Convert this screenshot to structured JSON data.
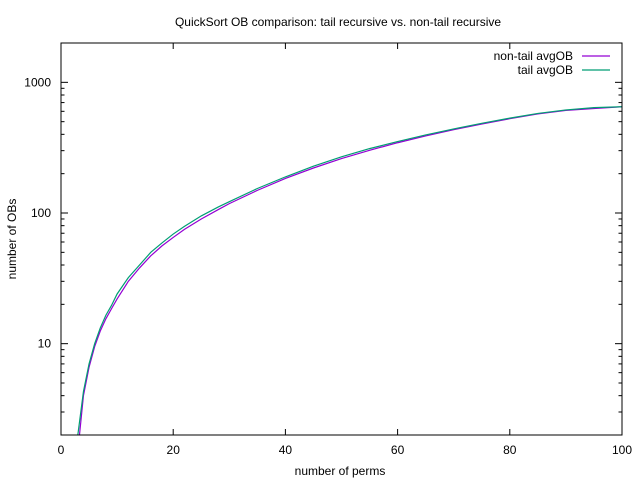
{
  "chart_data": {
    "type": "line",
    "title": "QuickSort OB comparison: tail recursive vs. non-tail recursive",
    "xlabel": "number of perms",
    "ylabel": "number of OBs",
    "xlim": [
      0,
      100
    ],
    "ylim": [
      2,
      2000
    ],
    "yscale": "log",
    "grid": false,
    "legend_position": "top-right",
    "xticks": [
      "0",
      "20",
      "40",
      "60",
      "80",
      "100"
    ],
    "yticks": [
      "10",
      "100",
      "1000"
    ],
    "x": [
      3,
      4,
      5,
      6,
      7,
      8,
      9,
      10,
      12,
      14,
      16,
      18,
      20,
      22,
      25,
      28,
      30,
      35,
      40,
      45,
      50,
      55,
      60,
      65,
      70,
      75,
      80,
      85,
      90,
      95,
      100
    ],
    "series": [
      {
        "name": "non-tail avgOB",
        "color": "#9400d3",
        "values": [
          1.5,
          4,
          6.6,
          9.5,
          12.5,
          15.5,
          18.5,
          22,
          30,
          38,
          47,
          56,
          65,
          75,
          90,
          106,
          118,
          149,
          184,
          221,
          261,
          302,
          345,
          389,
          434,
          480,
          527,
          573,
          610,
          630,
          650
        ]
      },
      {
        "name": "tail avgOB",
        "color": "#009e73",
        "values": [
          2.0,
          4.3,
          7.0,
          10.0,
          13.2,
          16.5,
          19.6,
          24,
          32,
          40,
          50,
          59,
          69,
          79,
          95,
          111,
          122,
          154,
          189,
          228,
          269,
          311,
          352,
          396,
          440,
          486,
          532,
          578,
          615,
          640,
          650
        ]
      }
    ]
  }
}
